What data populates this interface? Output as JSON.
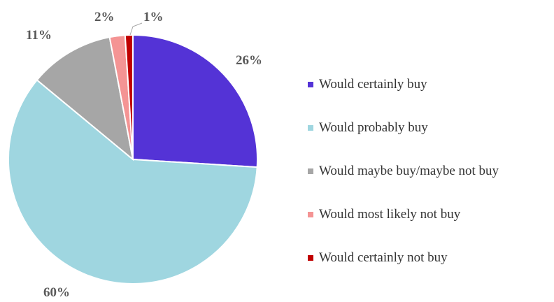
{
  "chart_data": {
    "type": "pie",
    "categories": [
      "Would certainly buy",
      "Would probably buy",
      "Would maybe buy/maybe not buy",
      "Would most likely not buy",
      "Would certainly not buy"
    ],
    "values": [
      26,
      60,
      11,
      2,
      1
    ],
    "value_labels": [
      "26%",
      "60%",
      "11%",
      "2%",
      "1%"
    ],
    "colors": [
      "#5433D6",
      "#9FD6E0",
      "#A6A6A6",
      "#F49494",
      "#C00000"
    ],
    "legend_position": "right",
    "start_angle_deg": 0,
    "direction": "clockwise"
  }
}
